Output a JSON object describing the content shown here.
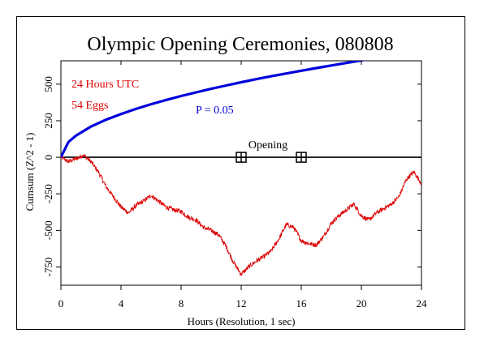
{
  "chart_data": {
    "type": "line",
    "title": "Olympic Opening Ceremonies, 080808",
    "xlabel": "Hours (Resolution, 1 sec)",
    "ylabel": "Cumsum (Z^2 - 1)",
    "xlim": [
      0,
      24
    ],
    "ylim": [
      -875,
      660
    ],
    "x_ticks": [
      0,
      4,
      8,
      12,
      16,
      20,
      24
    ],
    "y_ticks": [
      500,
      250,
      0,
      -250,
      -500,
      -750
    ],
    "grid": false,
    "annotations": {
      "hours_label": "24 Hours UTC",
      "eggs_label": "54 Eggs",
      "p_label": "P = 0.05",
      "event_label": "Opening"
    },
    "event_markers_x": [
      12,
      16
    ],
    "series": [
      {
        "role": "cumsum",
        "color": "#dd0000",
        "x": [
          0,
          0.5,
          1.0,
          1.5,
          2.0,
          2.5,
          3.0,
          3.5,
          4.0,
          4.5,
          5.0,
          5.5,
          6.0,
          6.5,
          7.0,
          7.5,
          8.0,
          8.5,
          9.0,
          9.5,
          10.0,
          10.5,
          11.0,
          11.5,
          12.0,
          12.5,
          13.0,
          13.5,
          14.0,
          14.5,
          15.0,
          15.5,
          16.0,
          16.5,
          17.0,
          17.5,
          18.0,
          18.5,
          19.0,
          19.5,
          20.0,
          20.5,
          21.0,
          21.5,
          22.0,
          22.5,
          23.0,
          23.5,
          24.0
        ],
        "y": [
          0,
          -30,
          -10,
          15,
          -30,
          -100,
          -200,
          -270,
          -340,
          -380,
          -330,
          -300,
          -260,
          -300,
          -340,
          -360,
          -370,
          -410,
          -430,
          -480,
          -500,
          -530,
          -610,
          -720,
          -800,
          -750,
          -710,
          -680,
          -640,
          -560,
          -460,
          -480,
          -570,
          -590,
          -600,
          -540,
          -450,
          -400,
          -360,
          -320,
          -400,
          -430,
          -380,
          -350,
          -320,
          -270,
          -150,
          -100,
          -180
        ]
      },
      {
        "role": "P = 0.05",
        "color": "#0000dd",
        "x": [
          0,
          0.5,
          1,
          2,
          3,
          4,
          5,
          6,
          7,
          8,
          9,
          10,
          11,
          12,
          13,
          14,
          15,
          16,
          17,
          18,
          19,
          20,
          21,
          21.8
        ],
        "y": [
          0,
          105,
          148,
          210,
          257,
          296,
          331,
          363,
          392,
          419,
          444,
          468,
          491,
          513,
          534,
          554,
          573,
          592,
          610,
          628,
          645,
          662,
          679,
          690
        ]
      }
    ]
  }
}
